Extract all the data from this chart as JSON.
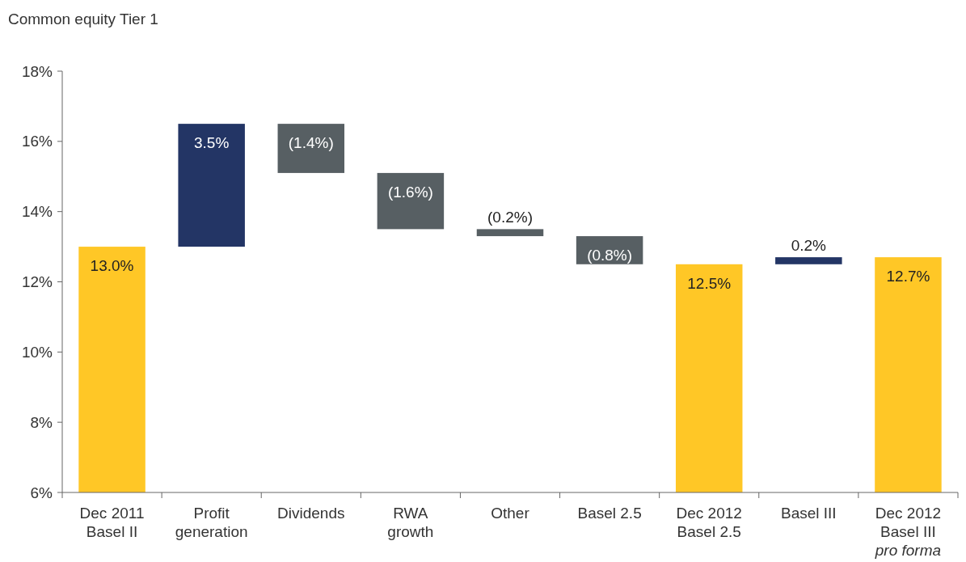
{
  "chart_data": {
    "type": "bar",
    "title": "Common equity Tier 1",
    "categories": [
      "Dec 2011\nBasel II",
      "Profit\ngeneration",
      "Dividends",
      "RWA\ngrowth",
      "Other",
      "Basel 2.5",
      "Dec 2012\nBasel 2.5",
      "Basel III",
      "Dec 2012\nBasel III\npro forma"
    ],
    "values": [
      13.0,
      3.5,
      -1.4,
      -1.6,
      -0.2,
      -0.8,
      12.5,
      0.2,
      12.7
    ],
    "base": [
      null,
      13.0,
      16.5,
      15.1,
      13.5,
      13.3,
      null,
      12.5,
      null
    ],
    "colors": [
      "#ffc726",
      "#233565",
      "#575f63",
      "#575f63",
      "#575f63",
      "#575f63",
      "#ffc726",
      "#233565",
      "#ffc726"
    ],
    "value_labels": [
      "13.0%",
      "3.5%",
      "(1.4%)",
      "(1.6%)",
      "(0.2%)",
      "(0.8%)",
      "12.5%",
      "0.2%",
      "12.7%"
    ],
    "ylim": [
      6,
      18
    ],
    "yticks": [
      {
        "value": 6,
        "label": "6%"
      },
      {
        "value": 8,
        "label": "8%"
      },
      {
        "value": 10,
        "label": "10%"
      },
      {
        "value": 12,
        "label": "12%"
      },
      {
        "value": 14,
        "label": "14%"
      },
      {
        "value": 16,
        "label": "16%"
      },
      {
        "value": 18,
        "label": "18%"
      }
    ],
    "grid": false
  }
}
